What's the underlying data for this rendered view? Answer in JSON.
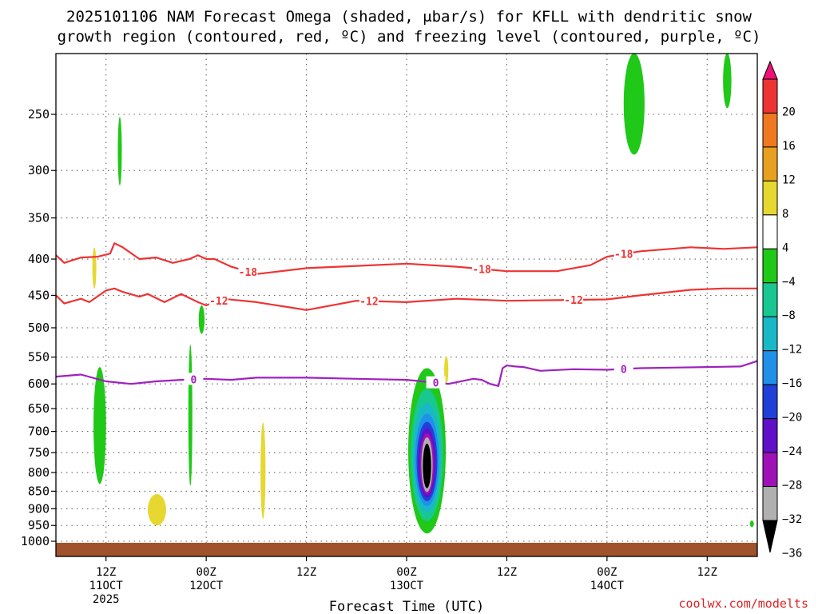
{
  "chart_data": {
    "type": "time-height cross section",
    "title_line1": "2025101106 NAM Forecast Omega (shaded, μbar/s) for KFLL with dendritic snow",
    "title_line2": "growth region (contoured, red, ºC) and freezing level (contoured, purple, ºC)",
    "xlabel": "Forecast Time (UTC)",
    "credit": "coolwx.com/modelts",
    "x_range_hours": [
      0,
      84
    ],
    "x_ticks": [
      {
        "hour": 6,
        "label": "12Z",
        "sub1": "11OCT",
        "sub2": "2025"
      },
      {
        "hour": 18,
        "label": "00Z",
        "sub1": "12OCT",
        "sub2": ""
      },
      {
        "hour": 30,
        "label": "12Z",
        "sub1": "",
        "sub2": ""
      },
      {
        "hour": 42,
        "label": "00Z",
        "sub1": "13OCT",
        "sub2": ""
      },
      {
        "hour": 54,
        "label": "12Z",
        "sub1": "",
        "sub2": ""
      },
      {
        "hour": 66,
        "label": "00Z",
        "sub1": "14OCT",
        "sub2": ""
      },
      {
        "hour": 78,
        "label": "12Z",
        "sub1": "",
        "sub2": ""
      }
    ],
    "y_ticks": [
      250,
      300,
      350,
      400,
      450,
      500,
      550,
      600,
      650,
      700,
      750,
      800,
      850,
      900,
      950,
      1000
    ],
    "y_range_hpa": [
      200,
      1025
    ],
    "colorbar": {
      "labels": [
        "20",
        "16",
        "12",
        "8",
        "4",
        "−4",
        "−8",
        "−12",
        "−16",
        "−20",
        "−24",
        "−28",
        "−32",
        "−36"
      ],
      "colors": [
        "#ee1177",
        "#ee3333",
        "#f07820",
        "#e8a020",
        "#e6d830",
        "#ffffff",
        "#20c818",
        "#18c890",
        "#18b8c8",
        "#2090e8",
        "#2040d8",
        "#6010c8",
        "#a010b8",
        "#b0b0b0",
        "#000000"
      ]
    },
    "contours": {
      "minus18": {
        "label": "-18",
        "color": "#ee3333",
        "t": [
          0,
          1,
          3,
          5,
          6.5,
          7,
          8,
          10,
          12,
          14,
          16,
          17,
          18,
          19,
          21,
          24,
          30,
          36,
          42,
          48,
          54,
          60,
          64,
          66,
          70,
          76,
          80,
          84
        ],
        "p": [
          395,
          405,
          398,
          397,
          393,
          380,
          385,
          400,
          398,
          405,
          400,
          395,
          400,
          400,
          410,
          420,
          412,
          409,
          406,
          410,
          416,
          416,
          408,
          397,
          390,
          385,
          387,
          385
        ],
        "label_t": [
          23,
          51,
          68
        ]
      },
      "minus12": {
        "label": "-12",
        "color": "#ee3333",
        "t": [
          0,
          1,
          3,
          4,
          6,
          7,
          8,
          10,
          11,
          13,
          15,
          17,
          18,
          20,
          24,
          30,
          36,
          42,
          48,
          54,
          60,
          66,
          70,
          76,
          80,
          84
        ],
        "p": [
          450,
          462,
          455,
          460,
          443,
          440,
          445,
          452,
          448,
          460,
          448,
          460,
          465,
          455,
          460,
          472,
          458,
          460,
          455,
          458,
          457,
          456,
          450,
          442,
          440,
          440
        ],
        "label_t": [
          19.5,
          37.5,
          62
        ]
      },
      "zero": {
        "label": "0",
        "color": "#a020c0",
        "t": [
          0,
          3,
          6,
          9,
          12,
          15,
          18,
          21,
          24,
          30,
          36,
          42,
          47,
          50,
          51,
          52,
          53,
          53.5,
          54,
          55,
          56,
          58,
          62,
          66,
          70,
          74,
          78,
          82,
          84
        ],
        "p": [
          586,
          582,
          595,
          600,
          595,
          592,
          590,
          592,
          588,
          588,
          590,
          592,
          600,
          590,
          592,
          600,
          604,
          570,
          565,
          567,
          568,
          575,
          572,
          573,
          570,
          569,
          568,
          567,
          557
        ],
        "label_t": [
          16.5,
          45.5,
          68
        ]
      }
    },
    "omega_regions": [
      {
        "name": "green-cell-300",
        "value": -6,
        "t": [
          7.6,
          7.8,
          7.5,
          7.8
        ],
        "p": [
          252,
          315
        ]
      },
      {
        "name": "yellow-cell-400",
        "value": 4,
        "t": [
          4.4,
          4.8,
          4.6
        ],
        "p": [
          385,
          440
        ]
      },
      {
        "name": "green-cell-480",
        "value": -6,
        "t": [
          17.1,
          17.8
        ],
        "p": [
          465,
          510
        ]
      },
      {
        "name": "green-cell-650",
        "value": -6,
        "t": [
          4.5,
          6.0
        ],
        "p": [
          568,
          830
        ]
      },
      {
        "name": "green-cell-700",
        "value": -6,
        "t": [
          15.9,
          16.3
        ],
        "p": [
          528,
          835
        ]
      },
      {
        "name": "yellow-cell-780",
        "value": 4,
        "t": [
          24.5,
          25.1
        ],
        "p": [
          680,
          930
        ]
      },
      {
        "name": "yellow-cell-900",
        "value": 4,
        "t": [
          11.0,
          13.2
        ],
        "p": [
          858,
          950
        ]
      },
      {
        "name": "yellow-cell-570",
        "value": 4,
        "t": [
          46.5,
          47.0
        ],
        "p": [
          548,
          600
        ]
      },
      {
        "name": "deep-ascent-core",
        "value": -40,
        "t": [
          42.0,
          46.5
        ],
        "p": [
          570,
          975
        ]
      },
      {
        "name": "green-cell-top-1",
        "value": -6,
        "t": [
          68,
          70.5
        ],
        "p": [
          205,
          285
        ]
      },
      {
        "name": "green-cell-top-2",
        "value": -6,
        "t": [
          79.9,
          80.9
        ],
        "p": [
          205,
          245
        ]
      },
      {
        "name": "green-cell-950",
        "value": -6,
        "t": [
          83.2,
          83.5
        ],
        "p": [
          935,
          955
        ]
      }
    ],
    "terrain": {
      "label": "surface",
      "color": "#a0522d",
      "p_top": 1005
    }
  }
}
